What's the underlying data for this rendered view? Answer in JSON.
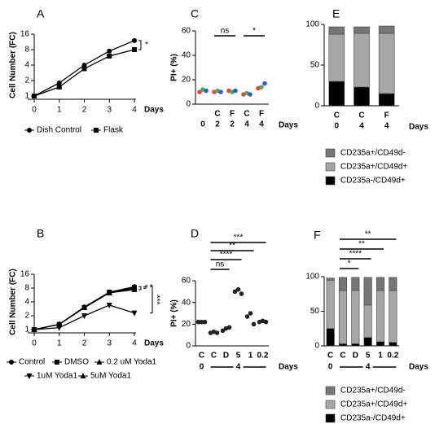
{
  "chart_data": [
    {
      "panel": "A",
      "type": "line",
      "yscale": "log",
      "x": [
        0,
        1,
        2,
        3,
        4
      ],
      "xlim": [
        0,
        4
      ],
      "xticks": [
        0,
        1,
        2,
        3,
        4
      ],
      "ylim": [
        1,
        16
      ],
      "yticks": [
        1,
        2,
        4,
        8,
        16
      ],
      "ylabel": "Cell Number (FC)",
      "xlabel": "Days",
      "series": [
        {
          "name": "Dish Control",
          "color": "#000000",
          "marker": "circle",
          "values": [
            1,
            1.8,
            4,
            7.5,
            12
          ]
        },
        {
          "name": "Flask",
          "color": "#000000",
          "marker": "square",
          "values": [
            1,
            1.5,
            3.4,
            6,
            8
          ]
        }
      ],
      "annotations": [
        "*"
      ]
    },
    {
      "panel": "C",
      "type": "scatter",
      "categories": [
        null,
        "C",
        "F",
        "C",
        "F"
      ],
      "category_sublabels": [
        "0",
        "2",
        "2",
        "4",
        "4"
      ],
      "ylim": [
        0,
        60
      ],
      "yticks": [
        0,
        20,
        40,
        60
      ],
      "ylabel": "PI+ (%)",
      "xlabel": "Days",
      "series": [
        {
          "color": "#e8443a",
          "values": [
            10,
            10,
            11,
            8,
            13
          ]
        },
        {
          "color": "#3cb44b",
          "values": [
            12,
            11,
            10,
            9,
            14
          ]
        },
        {
          "color": "#3a55e0",
          "values": [
            11,
            10,
            11,
            8,
            17
          ]
        }
      ],
      "annotations": [
        "ns",
        "*"
      ]
    },
    {
      "panel": "E",
      "type": "stacked_bar",
      "categories": [
        "C",
        "C",
        "F"
      ],
      "category_sublabels": [
        "0",
        "4",
        "4"
      ],
      "ylim": [
        0,
        100
      ],
      "yticks": [
        0,
        50,
        100
      ],
      "xlabel": "Days",
      "series": [
        {
          "name": "CD235a-/CD49d+",
          "color": "#000000",
          "values": [
            30,
            23,
            15
          ]
        },
        {
          "name": "CD235a+/CD49d+",
          "color": "#a6a6a6",
          "values": [
            58,
            66,
            74
          ]
        },
        {
          "name": "CD235a+/CD49d-",
          "color": "#767676",
          "values": [
            9,
            8,
            9
          ]
        }
      ]
    },
    {
      "panel": "B",
      "type": "line",
      "yscale": "log",
      "x": [
        0,
        1,
        2,
        3,
        4
      ],
      "xlim": [
        0,
        4
      ],
      "xticks": [
        0,
        1,
        2,
        3,
        4
      ],
      "ylim": [
        1,
        16
      ],
      "yticks": [
        1,
        2,
        4,
        8,
        16
      ],
      "ylabel": "Cell Number (FC)",
      "xlabel": "Days",
      "series": [
        {
          "name": "Control",
          "color": "#000000",
          "marker": "circle",
          "values": [
            1,
            1.3,
            3.1,
            6.5,
            8.6
          ]
        },
        {
          "name": "DMSO",
          "color": "#000000",
          "marker": "square",
          "values": [
            1,
            1.3,
            3,
            6.5,
            8.2
          ]
        },
        {
          "name": "0.2 uM Yoda1",
          "color": "#000000",
          "marker": "triangle-up",
          "values": [
            1,
            1.3,
            3,
            6.3,
            7.4
          ]
        },
        {
          "name": "1uM Yoda1",
          "color": "#000000",
          "marker": "triangle-down",
          "values": [
            1,
            1.1,
            2,
            3.4,
            2.3
          ]
        },
        {
          "name": "5uM Yoda1",
          "color": "#000000",
          "marker": "triangle-up",
          "values": [
            1,
            1.3,
            3,
            6.4,
            7.9
          ]
        }
      ],
      "annotations": [
        "*",
        "*",
        "***"
      ]
    },
    {
      "panel": "D",
      "type": "scatter",
      "categories": [
        "C",
        "C",
        "D",
        "5",
        "1",
        "0.2"
      ],
      "groups": [
        "0",
        "4"
      ],
      "ylim": [
        0,
        60
      ],
      "yticks": [
        0,
        20,
        40,
        60
      ],
      "ylabel": "PI+ (%)",
      "xlabel": "Days",
      "series": [
        {
          "color": "#222222",
          "values": [
            22,
            12,
            14,
            50,
            27,
            22
          ]
        },
        {
          "color": "#222222",
          "values": [
            22,
            13,
            16,
            52,
            30,
            23
          ]
        },
        {
          "color": "#222222",
          "values": [
            22,
            12,
            17,
            48,
            20,
            22
          ]
        }
      ],
      "annotations": [
        "***",
        "**",
        "****",
        "ns"
      ]
    },
    {
      "panel": "F",
      "type": "stacked_bar",
      "categories": [
        "C",
        "C",
        "D",
        "5",
        "1",
        "0.2"
      ],
      "groups": [
        "0",
        "4"
      ],
      "ylim": [
        0,
        100
      ],
      "yticks": [
        0,
        50,
        100
      ],
      "xlabel": "Days",
      "series": [
        {
          "name": "CD235a-/CD49d+",
          "color": "#000000",
          "values": [
            25,
            3,
            3,
            12,
            6,
            5
          ]
        },
        {
          "name": "CD235a+/CD49d+",
          "color": "#a6a6a6",
          "values": [
            70,
            77,
            77,
            47,
            74,
            75
          ]
        },
        {
          "name": "CD235a+/CD49d-",
          "color": "#767676",
          "values": [
            3,
            19,
            19,
            40,
            19,
            19
          ]
        }
      ],
      "annotations": [
        "**",
        "**",
        "****",
        "*"
      ]
    }
  ]
}
